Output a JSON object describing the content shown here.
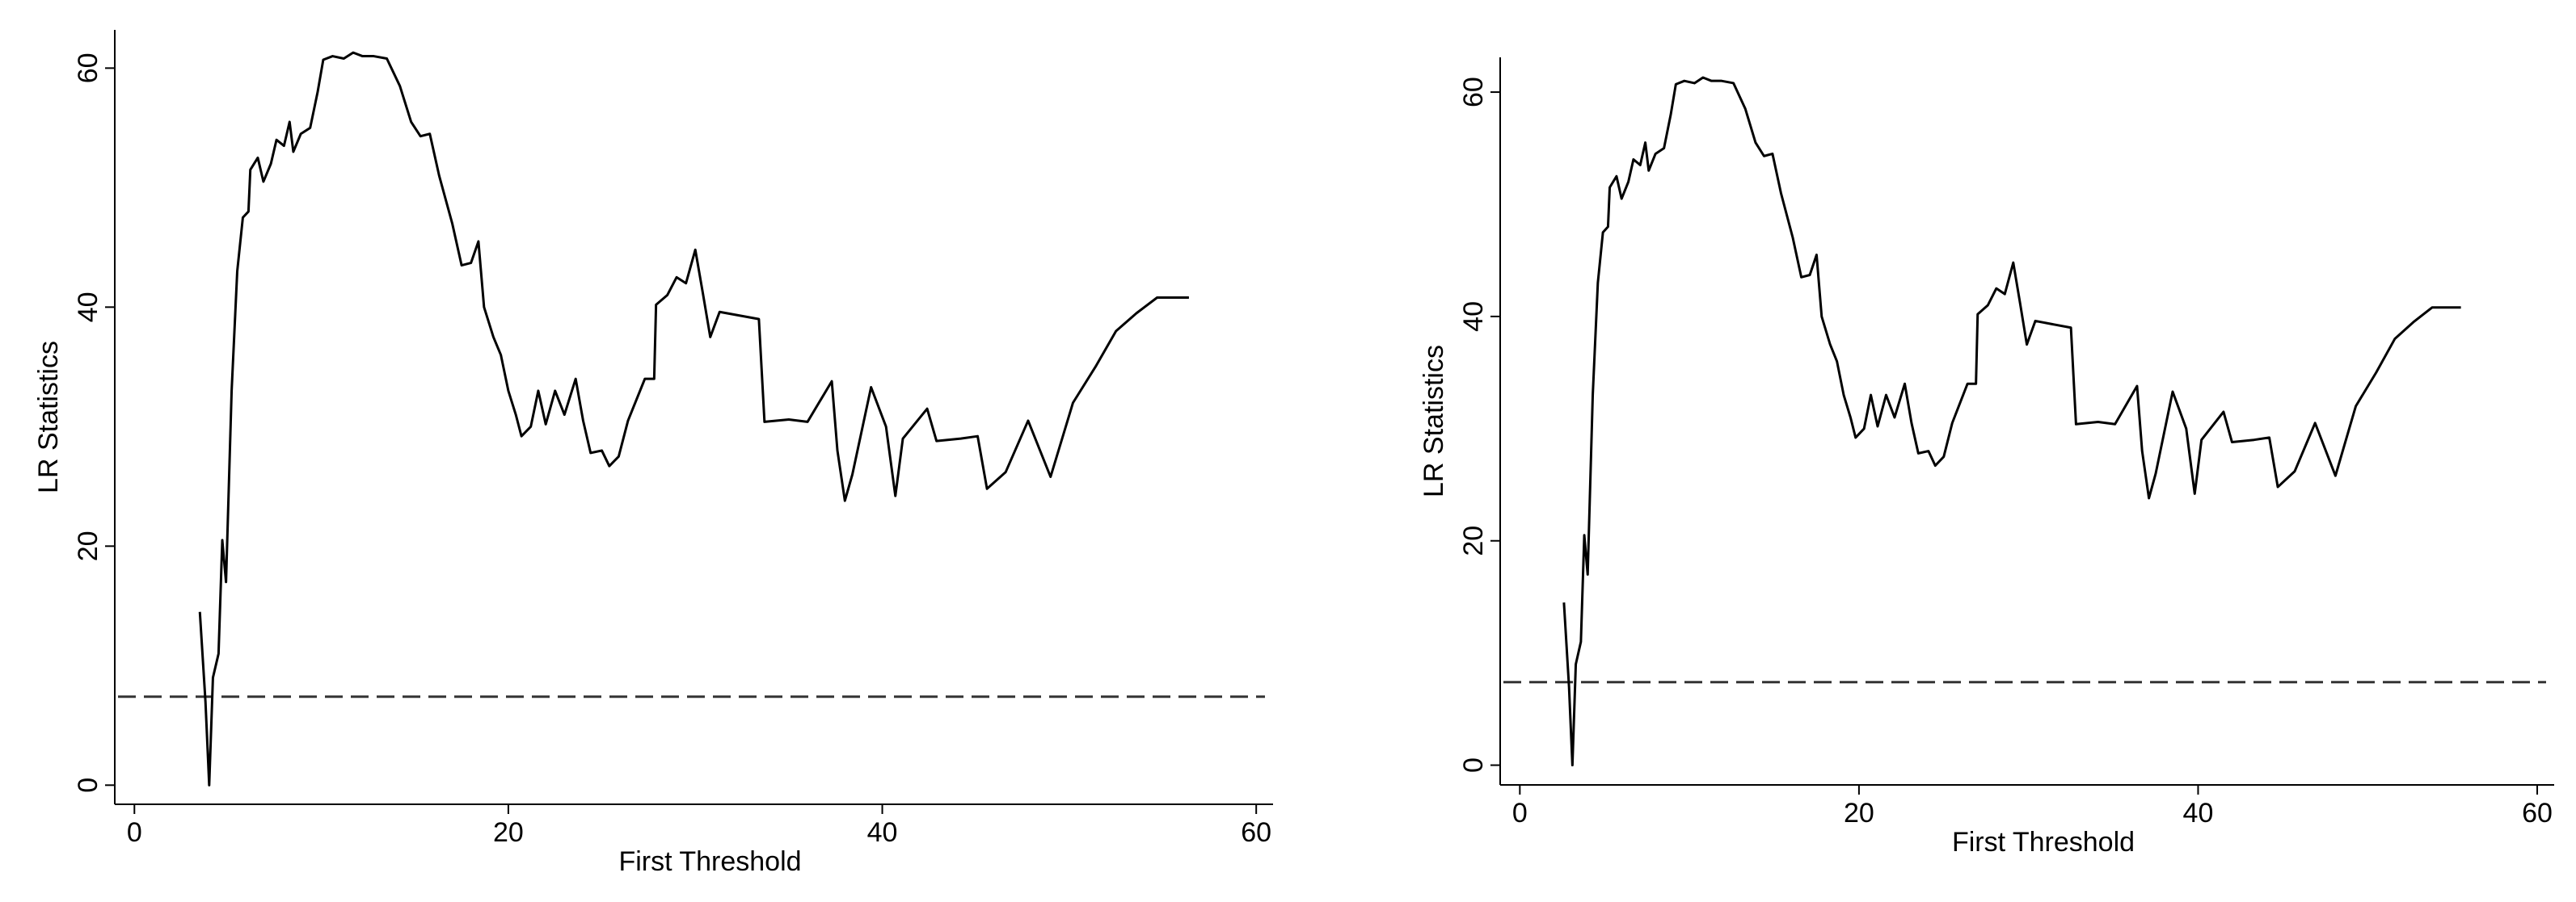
{
  "chart_data": [
    {
      "type": "line",
      "x_label": "First Threshold",
      "y_label": "LR Statistics",
      "xlim": [
        -1.05,
        60.9
      ],
      "ylim": [
        -1.6,
        63.2
      ],
      "xticks": [
        0,
        20,
        40,
        60
      ],
      "yticks": [
        0,
        20,
        40,
        60
      ],
      "hline": 7.4,
      "color": "#000000",
      "x": [
        3.5,
        3.8,
        4.0,
        4.2,
        4.5,
        4.7,
        4.9,
        5.2,
        5.5,
        5.8,
        6.1,
        6.2,
        6.6,
        6.9,
        7.3,
        7.6,
        8.0,
        8.3,
        8.5,
        8.9,
        9.4,
        9.8,
        10.1,
        10.6,
        11.2,
        11.7,
        12.2,
        12.8,
        13.5,
        14.2,
        14.8,
        15.3,
        15.8,
        16.3,
        17.0,
        17.5,
        18.0,
        18.4,
        18.7,
        19.2,
        19.6,
        20.0,
        20.4,
        20.7,
        21.2,
        21.6,
        22.0,
        22.5,
        23.0,
        23.6,
        24.0,
        24.4,
        25.0,
        25.4,
        25.9,
        26.4,
        27.3,
        27.8,
        27.9,
        28.5,
        29.0,
        29.5,
        30.0,
        30.4,
        30.8,
        31.3,
        33.4,
        33.7,
        35.0,
        36.0,
        37.3,
        37.6,
        38.0,
        38.4,
        39.4,
        40.2,
        40.7,
        41.1,
        42.4,
        42.9,
        44.2,
        45.1,
        45.6,
        46.6,
        47.8,
        49.0,
        50.2,
        51.4,
        52.5,
        53.6,
        54.7,
        56.4
      ],
      "values": [
        14.5,
        7,
        0,
        9,
        11,
        20.5,
        17,
        33,
        43,
        47.5,
        48,
        51.5,
        52.5,
        50.5,
        52,
        54,
        53.5,
        55.5,
        53,
        54.5,
        55,
        58,
        60.7,
        61,
        60.8,
        61.3,
        61,
        61,
        60.8,
        58.5,
        55.5,
        54.3,
        54.5,
        51,
        47,
        43.5,
        43.7,
        45.5,
        40,
        37.5,
        36,
        33,
        31,
        29.2,
        30,
        33,
        30.2,
        33,
        31,
        34,
        30.5,
        27.8,
        28,
        26.7,
        27.5,
        30.5,
        34,
        34,
        40.2,
        41,
        42.5,
        42,
        44.8,
        41.2,
        37.5,
        39.6,
        39,
        30.4,
        30.6,
        30.4,
        33.8,
        28,
        23.8,
        26,
        33.3,
        30,
        24.2,
        29,
        31.5,
        28.8,
        29,
        29.2,
        24.8,
        26.2,
        30.5,
        25.8,
        32,
        35,
        38,
        39.5,
        40.8,
        40.8
      ]
    },
    {
      "type": "line",
      "x_label": "First Threshold",
      "y_label": "LR Statistics",
      "xlim": [
        -1.16,
        61.0
      ],
      "ylim": [
        -1.76,
        63.1
      ],
      "xticks": [
        0,
        20,
        40,
        60
      ],
      "yticks": [
        0,
        20,
        40,
        60
      ],
      "hline": 7.4,
      "color": "#000000",
      "x": [
        2.6,
        2.9,
        3.1,
        3.3,
        3.6,
        3.8,
        4.0,
        4.3,
        4.6,
        4.9,
        5.2,
        5.3,
        5.7,
        6.0,
        6.4,
        6.7,
        7.1,
        7.4,
        7.6,
        8.0,
        8.5,
        8.9,
        9.2,
        9.7,
        10.3,
        10.8,
        11.3,
        11.9,
        12.6,
        13.3,
        13.9,
        14.4,
        14.9,
        15.4,
        16.1,
        16.6,
        17.1,
        17.5,
        17.8,
        18.3,
        18.7,
        19.1,
        19.5,
        19.8,
        20.3,
        20.7,
        21.1,
        21.6,
        22.1,
        22.7,
        23.1,
        23.5,
        24.1,
        24.5,
        25.0,
        25.5,
        26.4,
        26.9,
        27.0,
        27.6,
        28.1,
        28.6,
        29.1,
        29.5,
        29.9,
        30.4,
        32.5,
        32.8,
        34.1,
        35.1,
        36.4,
        36.7,
        37.1,
        37.5,
        38.5,
        39.3,
        39.8,
        40.2,
        41.5,
        42.0,
        43.3,
        44.2,
        44.7,
        45.7,
        46.9,
        48.1,
        49.3,
        50.5,
        51.6,
        52.7,
        53.8,
        55.5
      ],
      "values": [
        14.5,
        7,
        0,
        9,
        11,
        20.5,
        17,
        33,
        43,
        47.5,
        48,
        51.5,
        52.5,
        50.5,
        52,
        54,
        53.5,
        55.5,
        53,
        54.5,
        55,
        58,
        60.7,
        61,
        60.8,
        61.3,
        61,
        61,
        60.8,
        58.5,
        55.5,
        54.3,
        54.5,
        51,
        47,
        43.5,
        43.7,
        45.5,
        40,
        37.5,
        36,
        33,
        31,
        29.2,
        30,
        33,
        30.2,
        33,
        31,
        34,
        30.5,
        27.8,
        28,
        26.7,
        27.5,
        30.5,
        34,
        34,
        40.2,
        41,
        42.5,
        42,
        44.8,
        41.2,
        37.5,
        39.6,
        39,
        30.4,
        30.6,
        30.4,
        33.8,
        28,
        23.8,
        26,
        33.3,
        30,
        24.2,
        29,
        31.5,
        28.8,
        29,
        29.2,
        24.8,
        26.2,
        30.5,
        25.8,
        32,
        35,
        38,
        39.5,
        40.8,
        40.8
      ]
    }
  ]
}
